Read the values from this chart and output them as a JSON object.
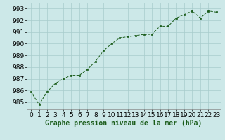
{
  "x": [
    0,
    1,
    2,
    3,
    4,
    5,
    6,
    7,
    8,
    9,
    10,
    11,
    12,
    13,
    14,
    15,
    16,
    17,
    18,
    19,
    20,
    21,
    22,
    23
  ],
  "y": [
    985.9,
    984.8,
    985.9,
    986.6,
    987.0,
    987.3,
    987.3,
    987.8,
    988.5,
    989.4,
    990.0,
    990.5,
    990.6,
    990.7,
    990.8,
    990.8,
    991.5,
    991.5,
    992.2,
    992.5,
    992.8,
    992.2,
    992.8,
    992.7
  ],
  "line_color": "#1a5c1a",
  "marker_color": "#1a5c1a",
  "bg_color": "#cce8e8",
  "grid_color": "#a8cccc",
  "xlabel": "Graphe pression niveau de la mer (hPa)",
  "ylim": [
    984.4,
    993.5
  ],
  "xlim": [
    -0.5,
    23.5
  ],
  "yticks": [
    985,
    986,
    987,
    988,
    989,
    990,
    991,
    992,
    993
  ],
  "xticks": [
    0,
    1,
    2,
    3,
    4,
    5,
    6,
    7,
    8,
    9,
    10,
    11,
    12,
    13,
    14,
    15,
    16,
    17,
    18,
    19,
    20,
    21,
    22,
    23
  ],
  "xlabel_fontsize": 7,
  "tick_fontsize": 6.5
}
